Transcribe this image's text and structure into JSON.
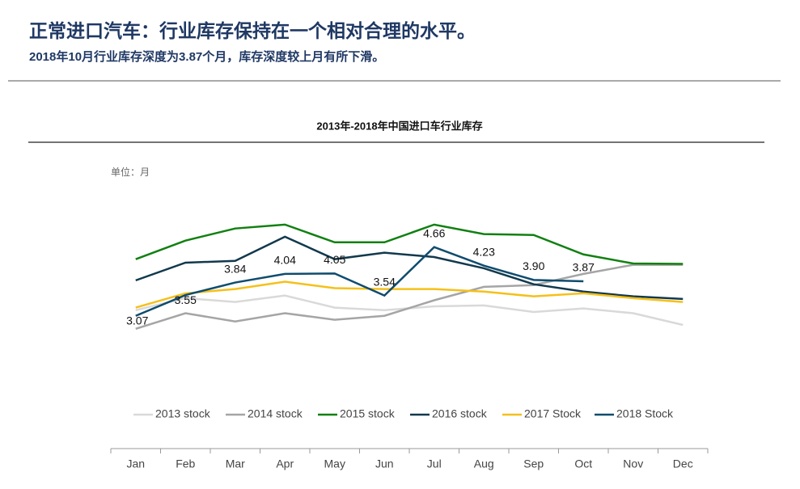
{
  "header": {
    "title": "正常进口汽车：行业库存保持在一个相对合理的水平。",
    "subtitle": "2018年10月行业库存深度为3.87个月，库存深度较上月有所下滑。"
  },
  "chart_data": {
    "type": "line",
    "title": "2013年-2018年中国进口车行业库存",
    "annotation": "单位：月",
    "categories": [
      "Jan",
      "Feb",
      "Mar",
      "Apr",
      "May",
      "Jun",
      "Jul",
      "Aug",
      "Sep",
      "Oct",
      "Nov",
      "Dec"
    ],
    "ylim": [
      0,
      6
    ],
    "series": [
      {
        "name": "2013 stock",
        "color": "#d9d9d9",
        "values": [
          3.2,
          3.48,
          3.39,
          3.54,
          3.26,
          3.2,
          3.29,
          3.31,
          3.16,
          3.24,
          3.13,
          2.86
        ]
      },
      {
        "name": "2014 stock",
        "color": "#a5a5a5",
        "values": [
          2.77,
          3.13,
          2.94,
          3.13,
          2.98,
          3.07,
          3.43,
          3.74,
          3.78,
          4.04,
          4.25,
          4.25
        ]
      },
      {
        "name": "2015 stock",
        "color": "#118011",
        "values": [
          4.38,
          4.81,
          5.09,
          5.18,
          4.77,
          4.77,
          5.18,
          4.96,
          4.94,
          4.49,
          4.28,
          4.27
        ]
      },
      {
        "name": "2016 stock",
        "color": "#12394d",
        "values": [
          3.89,
          4.3,
          4.34,
          4.9,
          4.38,
          4.53,
          4.43,
          4.17,
          3.8,
          3.63,
          3.52,
          3.46
        ]
      },
      {
        "name": "2017 Stock",
        "color": "#f5c01a",
        "values": [
          3.26,
          3.59,
          3.69,
          3.86,
          3.71,
          3.69,
          3.69,
          3.63,
          3.52,
          3.59,
          3.48,
          3.39
        ]
      },
      {
        "name": "2018 Stock",
        "color": "#0f4c6e",
        "values": [
          3.07,
          3.55,
          3.84,
          4.04,
          4.05,
          3.54,
          4.66,
          4.23,
          3.9,
          3.87,
          null,
          null
        ],
        "value_labels": [
          "3.07",
          "3.55",
          "3.84",
          "4.04",
          "4.05",
          "3.54",
          "4.66",
          "4.23",
          "3.90",
          "3.87",
          null,
          null
        ]
      }
    ]
  }
}
